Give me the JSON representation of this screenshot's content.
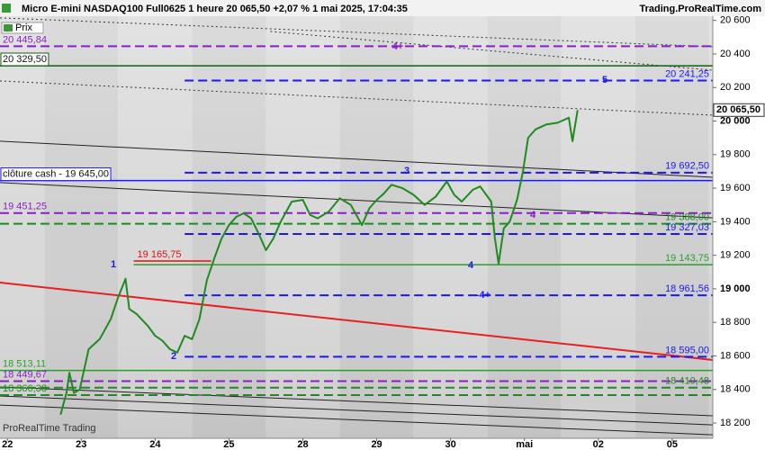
{
  "chart_data": {
    "type": "line",
    "title": "Micro E-mini NASDAQ100 Full0625 1 heure 20 065,50 +2,07 % 1 mai 2025, 17:04:35",
    "source": "Trading.ProRealTime.com",
    "footer": "ProRealTime Trading",
    "legend": "Prix",
    "xlim": [
      -0.1,
      9.55
    ],
    "xticks": [
      {
        "value": 0,
        "label": "22"
      },
      {
        "value": 1,
        "label": "23"
      },
      {
        "value": 2,
        "label": "24"
      },
      {
        "value": 3,
        "label": "25"
      },
      {
        "value": 4,
        "label": "28"
      },
      {
        "value": 5,
        "label": "29"
      },
      {
        "value": 6,
        "label": "30"
      },
      {
        "value": 7,
        "label": "mai"
      },
      {
        "value": 8,
        "label": "02"
      },
      {
        "value": 9,
        "label": "05"
      }
    ],
    "ylim": [
      18109,
      20625
    ],
    "yticks": [
      {
        "value": 18200,
        "label": "18 200"
      },
      {
        "value": 18400,
        "label": "18 400"
      },
      {
        "value": 18600,
        "label": "18 600"
      },
      {
        "value": 18800,
        "label": "18 800"
      },
      {
        "value": 19000,
        "label": "19 000"
      },
      {
        "value": 19200,
        "label": "19 200"
      },
      {
        "value": 19400,
        "label": "19 400"
      },
      {
        "value": 19600,
        "label": "19 600"
      },
      {
        "value": 19800,
        "label": "19 800"
      },
      {
        "value": 20000,
        "label": "20 000"
      },
      {
        "value": 20200,
        "label": "20 200"
      },
      {
        "value": 20400,
        "label": "20 400"
      },
      {
        "value": 20600,
        "label": "20 600"
      }
    ],
    "series": [
      {
        "name": "Prix",
        "color": "#1f8a1f",
        "x": [
          0.72,
          0.8,
          0.84,
          0.9,
          0.98,
          1.1,
          1.25,
          1.4,
          1.5,
          1.6,
          1.65,
          1.75,
          1.9,
          2.0,
          2.1,
          2.2,
          2.3,
          2.4,
          2.5,
          2.6,
          2.7,
          2.8,
          2.9,
          3.0,
          3.1,
          3.2,
          3.3,
          3.4,
          3.5,
          3.6,
          3.7,
          3.85,
          4.0,
          4.1,
          4.2,
          4.35,
          4.5,
          4.65,
          4.8,
          4.9,
          5.0,
          5.1,
          5.2,
          5.35,
          5.5,
          5.65,
          5.8,
          5.95,
          6.05,
          6.15,
          6.3,
          6.4,
          6.55,
          6.6,
          6.65,
          6.72,
          6.8,
          6.9,
          6.98,
          7.05,
          7.15,
          7.3,
          7.45,
          7.6,
          7.65,
          7.72
        ],
        "values": [
          18250,
          18380,
          18500,
          18380,
          18400,
          18640,
          18700,
          18820,
          18950,
          19060,
          18880,
          18850,
          18780,
          18720,
          18690,
          18640,
          18620,
          18720,
          18700,
          18820,
          19050,
          19180,
          19300,
          19380,
          19430,
          19450,
          19420,
          19330,
          19230,
          19300,
          19400,
          19520,
          19530,
          19440,
          19420,
          19460,
          19540,
          19500,
          19380,
          19480,
          19530,
          19570,
          19620,
          19600,
          19560,
          19500,
          19550,
          19640,
          19560,
          19520,
          19590,
          19610,
          19520,
          19300,
          19150,
          19360,
          19400,
          19530,
          19700,
          19900,
          19950,
          19980,
          19990,
          20020,
          19880,
          20065.5
        ]
      }
    ],
    "last_price": {
      "value": 20065.5,
      "label": "20 065,50"
    },
    "levels": [
      {
        "value": 20445.84,
        "label": "20 445,84",
        "color": "#8a1fc8",
        "style": "dashed",
        "side": "left"
      },
      {
        "value": 20329.5,
        "label": "20 329,50",
        "color": "#1a5a1a",
        "style": "solid",
        "side": "left",
        "boxed": true
      },
      {
        "value": 20241.25,
        "label": "20 241,25",
        "color": "#1a1aee",
        "style": "dashed",
        "side": "right",
        "x_start": 2.4
      },
      {
        "value": 19692.5,
        "label": "19 692,50",
        "color": "#1a1aee",
        "style": "dashed",
        "side": "right",
        "x_start": 2.4
      },
      {
        "value": 19645,
        "label": "clôture cash -  19 645,00",
        "color": "#1a1aee",
        "style": "solid",
        "side": "left",
        "boxed": true
      },
      {
        "value": 19451.25,
        "label": "19 451,25",
        "color": "#8a1fc8",
        "style": "dashed",
        "side": "left"
      },
      {
        "value": 19388,
        "label": "19 388,00",
        "color": "#1f8a1f",
        "style": "dashed",
        "side": "right"
      },
      {
        "value": 19327.03,
        "label": "19 327,03",
        "color": "#1a1aee",
        "style": "dashed",
        "side": "right",
        "x_start": 2.4
      },
      {
        "value": 19165.75,
        "label": "19 165,75",
        "color": "#e01010",
        "style": "solid",
        "side": "left",
        "x_start": 1.71,
        "x_end": 2.76
      },
      {
        "value": 19143.75,
        "label": "19 143,75",
        "color": "#2aa02a",
        "style": "solid",
        "side": "right",
        "x_start": 1.71
      },
      {
        "value": 18961.56,
        "label": "18 961,56",
        "color": "#1a1aee",
        "style": "dashed",
        "side": "right",
        "x_start": 2.4
      },
      {
        "value": 18595,
        "label": "18 595,00",
        "color": "#1a1aee",
        "style": "dashed",
        "side": "right",
        "x_start": 2.4
      },
      {
        "value": 18513.11,
        "label": "18 513,11",
        "color": "#2aa02a",
        "style": "solid",
        "side": "left"
      },
      {
        "value": 18449.67,
        "label": "18 449,67",
        "color": "#8a1fc8",
        "style": "dashed",
        "side": "left"
      },
      {
        "value": 18410.48,
        "label": "18 410,48",
        "color": "#1f8a1f",
        "style": "dashed",
        "side": "right"
      },
      {
        "value": 18366.38,
        "label": "18 366,38",
        "color": "#1f8a1f",
        "style": "dashed",
        "side": "left"
      }
    ],
    "trendlines": [
      {
        "x": [
          -0.1,
          9.55
        ],
        "values": [
          19037,
          18576
        ],
        "color": "#e82020",
        "style": "solid",
        "width": 2
      },
      {
        "x": [
          -0.1,
          9.55
        ],
        "values": [
          19880,
          19665
        ],
        "color": "#222",
        "style": "solid",
        "width": 1
      },
      {
        "x": [
          -0.1,
          9.55
        ],
        "values": [
          19633,
          19423
        ],
        "color": "#222",
        "style": "solid",
        "width": 1
      },
      {
        "x": [
          -0.1,
          9.55
        ],
        "values": [
          20615,
          20443
        ],
        "color": "#333",
        "style": "dotted",
        "width": 1
      },
      {
        "x": [
          -0.1,
          9.55
        ],
        "values": [
          20239,
          20035
        ],
        "color": "#333",
        "style": "dotted",
        "width": 1
      },
      {
        "x": [
          3.56,
          9.55
        ],
        "values": [
          20534,
          20303
        ],
        "color": "#333",
        "style": "dotted",
        "width": 1
      },
      {
        "x": [
          -0.1,
          9.55
        ],
        "values": [
          18415,
          18243
        ],
        "color": "#222",
        "style": "solid",
        "width": 1
      },
      {
        "x": [
          -0.1,
          9.55
        ],
        "values": [
          18361,
          18189
        ],
        "color": "#222",
        "style": "solid",
        "width": 1
      },
      {
        "x": [
          -0.1,
          9.55
        ],
        "values": [
          18307,
          18130
        ],
        "color": "#222",
        "style": "solid",
        "width": 1
      }
    ],
    "annotations": [
      {
        "text": "1",
        "color": "#1a1aee"
      },
      {
        "text": "2",
        "color": "#1a1aee"
      },
      {
        "text": "3",
        "color": "#1a1aee"
      },
      {
        "text": "4",
        "color": "#1a1aee"
      },
      {
        "text": "-4+",
        "color": "#1a1aee"
      },
      {
        "text": "4",
        "color": "#8a1fc8"
      },
      {
        "text": "4+",
        "color": "#8a1fc8"
      },
      {
        "text": "5",
        "color": "#1a1aee"
      }
    ]
  }
}
